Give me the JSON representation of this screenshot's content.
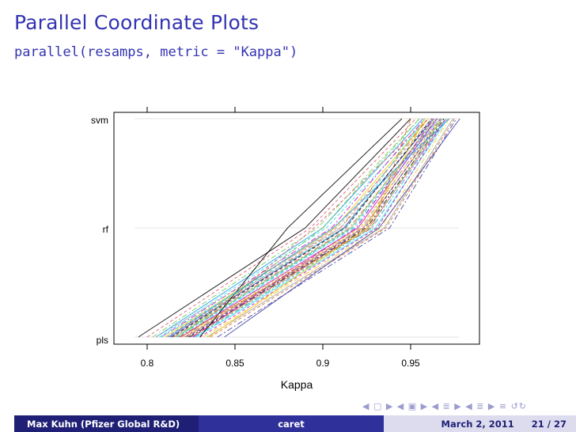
{
  "slide": {
    "title": "Parallel Coordinate Plots",
    "code": "parallel(resamps, metric = \"Kappa\")"
  },
  "chart_data": {
    "type": "parallel",
    "xlabel": "Kappa",
    "ylabel": "",
    "xlim": [
      0.78,
      0.985
    ],
    "axes_order": [
      "pls",
      "rf",
      "svm"
    ],
    "x_ticks": [
      0.8,
      0.85,
      0.9,
      0.95
    ],
    "x_tick_labels": [
      "0.8",
      "0.85",
      "0.9",
      "0.95"
    ],
    "y_tick_labels": [
      "pls",
      "rf",
      "svm"
    ],
    "grid": true,
    "legend": "none",
    "series_colors": [
      "#000000",
      "#df536b",
      "#61d04f",
      "#2297e6",
      "#28e2e5",
      "#cd0bbc",
      "#f5c710",
      "#9e9e9e",
      "#d2691e",
      "#3a3a9f"
    ],
    "series": [
      {
        "values": [
          0.795,
          0.89,
          0.95
        ]
      },
      {
        "values": [
          0.8,
          0.893,
          0.953
        ]
      },
      {
        "values": [
          0.803,
          0.897,
          0.955
        ]
      },
      {
        "values": [
          0.805,
          0.9,
          0.957
        ]
      },
      {
        "values": [
          0.807,
          0.902,
          0.96
        ]
      },
      {
        "values": [
          0.808,
          0.905,
          0.958
        ]
      },
      {
        "values": [
          0.81,
          0.907,
          0.96
        ]
      },
      {
        "values": [
          0.811,
          0.908,
          0.962
        ]
      },
      {
        "values": [
          0.812,
          0.91,
          0.96
        ]
      },
      {
        "values": [
          0.813,
          0.912,
          0.963
        ]
      },
      {
        "values": [
          0.814,
          0.913,
          0.962
        ]
      },
      {
        "values": [
          0.815,
          0.915,
          0.965
        ]
      },
      {
        "values": [
          0.816,
          0.916,
          0.964
        ]
      },
      {
        "values": [
          0.817,
          0.917,
          0.965
        ]
      },
      {
        "values": [
          0.818,
          0.918,
          0.966
        ]
      },
      {
        "values": [
          0.819,
          0.92,
          0.965
        ]
      },
      {
        "values": [
          0.82,
          0.921,
          0.967
        ]
      },
      {
        "values": [
          0.821,
          0.922,
          0.966
        ]
      },
      {
        "values": [
          0.822,
          0.923,
          0.968
        ]
      },
      {
        "values": [
          0.823,
          0.924,
          0.967
        ]
      },
      {
        "values": [
          0.824,
          0.925,
          0.969
        ]
      },
      {
        "values": [
          0.825,
          0.926,
          0.97
        ]
      },
      {
        "values": [
          0.826,
          0.927,
          0.968
        ]
      },
      {
        "values": [
          0.827,
          0.928,
          0.97
        ]
      },
      {
        "values": [
          0.828,
          0.93,
          0.971
        ]
      },
      {
        "values": [
          0.83,
          0.931,
          0.97
        ]
      },
      {
        "values": [
          0.832,
          0.933,
          0.972
        ]
      },
      {
        "values": [
          0.834,
          0.935,
          0.974
        ]
      },
      {
        "values": [
          0.836,
          0.936,
          0.975
        ]
      },
      {
        "values": [
          0.84,
          0.938,
          0.976
        ]
      },
      {
        "values": [
          0.83,
          0.88,
          0.945
        ]
      },
      {
        "values": [
          0.822,
          0.895,
          0.96
        ]
      },
      {
        "values": [
          0.818,
          0.9,
          0.955
        ]
      },
      {
        "values": [
          0.812,
          0.906,
          0.972
        ]
      },
      {
        "values": [
          0.808,
          0.913,
          0.958
        ]
      },
      {
        "values": [
          0.826,
          0.919,
          0.963
        ]
      },
      {
        "values": [
          0.835,
          0.925,
          0.958
        ]
      },
      {
        "values": [
          0.805,
          0.91,
          0.968
        ]
      },
      {
        "values": [
          0.818,
          0.928,
          0.95
        ]
      },
      {
        "values": [
          0.844,
          0.932,
          0.978
        ]
      }
    ]
  },
  "footer": {
    "author": "Max Kuhn  (Pfizer Global R&D)",
    "project": "caret",
    "date": "March 2, 2011",
    "pages": "21 / 27",
    "nav_icons": "◀ ▢ ▶  ◀ ▣ ▶  ◀ ≣ ▶  ◀ ≣ ▶   ≡   ↺↻"
  }
}
